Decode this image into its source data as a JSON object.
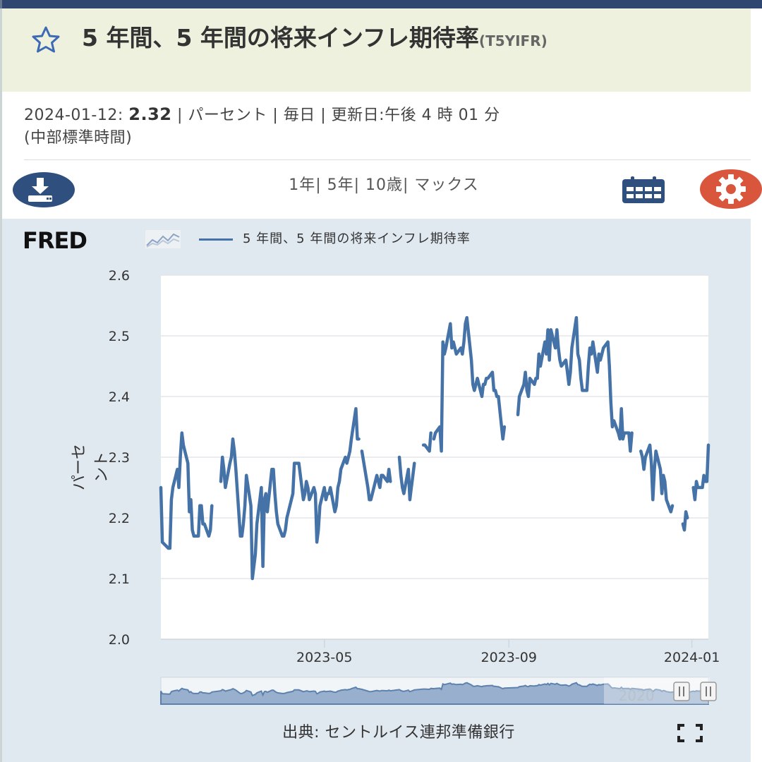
{
  "header": {
    "title": "5 年間、5 年間の将来インフレ期待率",
    "series_id": "(T5YIFR)"
  },
  "meta": {
    "date": "2024-01-12:",
    "value": "2.32",
    "rest_line1": "| パーセント | 毎日 | 更新日:午後 4 時 01 分",
    "rest_line2": "(中部標準時間)"
  },
  "toolbar": {
    "ranges": "1年| 5年| 10歳| マックス"
  },
  "chart_header": {
    "logo": "FRED",
    "legend": "5 年間、5 年間の将来インフレ期待率"
  },
  "navigator_label": "2020",
  "source": "出典: セントルイス連邦準備銀行",
  "colors": {
    "series": "#4572a7",
    "accent_red": "#d9553b",
    "accent_blue": "#2f4f7f",
    "panel": "#e1e9f0",
    "title_bg": "#eff1df"
  },
  "chart_data": {
    "type": "line",
    "ylabel": "パーセント",
    "ylim": [
      2.0,
      2.6
    ],
    "yticks": [
      "2.0",
      "2.1",
      "2.2",
      "2.3",
      "2.4",
      "2.5",
      "2.6"
    ],
    "xticks": [
      {
        "label": "2023-05",
        "date": "2023-05-01"
      },
      {
        "label": "2023-09",
        "date": "2023-09-01"
      },
      {
        "label": "2024-01",
        "date": "2024-01-01"
      }
    ],
    "xlim": [
      "2023-01-12",
      "2024-01-12"
    ],
    "grid": true,
    "series": [
      {
        "name": "5 年間、5 年間の将来インフレ期待率",
        "points": [
          [
            "2023-01-12",
            2.25
          ],
          [
            "2023-01-13",
            2.16
          ],
          [
            "2023-01-17",
            2.15
          ],
          [
            "2023-01-18",
            2.15
          ],
          [
            "2023-01-19",
            2.23
          ],
          [
            "2023-01-20",
            2.25
          ],
          [
            "2023-01-23",
            2.28
          ],
          [
            "2023-01-24",
            2.25
          ],
          [
            "2023-01-25",
            2.3
          ],
          [
            "2023-01-26",
            2.34
          ],
          [
            "2023-01-27",
            2.32
          ],
          [
            "2023-01-30",
            2.29
          ],
          [
            "2023-01-31",
            2.21
          ],
          [
            "2023-02-01",
            2.23
          ],
          [
            "2023-02-02",
            2.18
          ],
          [
            "2023-02-03",
            2.17
          ],
          [
            "2023-02-06",
            2.17
          ],
          [
            "2023-02-07",
            2.22
          ],
          [
            "2023-02-08",
            2.22
          ],
          [
            "2023-02-09",
            2.19
          ],
          [
            "2023-02-10",
            2.19
          ],
          [
            "2023-02-13",
            2.17
          ],
          [
            "2023-02-14",
            2.18
          ],
          [
            "2023-02-15",
            2.22
          ],
          null,
          [
            "2023-02-21",
            2.26
          ],
          [
            "2023-02-22",
            2.3
          ],
          [
            "2023-02-23",
            2.28
          ],
          [
            "2023-02-24",
            2.25
          ],
          [
            "2023-02-27",
            2.29
          ],
          [
            "2023-02-28",
            2.3
          ],
          [
            "2023-03-01",
            2.33
          ],
          [
            "2023-03-02",
            2.31
          ],
          [
            "2023-03-03",
            2.28
          ],
          [
            "2023-03-06",
            2.17
          ],
          [
            "2023-03-07",
            2.17
          ],
          [
            "2023-03-08",
            2.19
          ],
          [
            "2023-03-09",
            2.22
          ],
          [
            "2023-03-10",
            2.27
          ],
          [
            "2023-03-13",
            2.22
          ],
          [
            "2023-03-14",
            2.1
          ],
          [
            "2023-03-15",
            2.12
          ],
          [
            "2023-03-16",
            2.14
          ],
          [
            "2023-03-17",
            2.19
          ],
          [
            "2023-03-20",
            2.25
          ],
          [
            "2023-03-21",
            2.12
          ],
          [
            "2023-03-22",
            2.23
          ],
          [
            "2023-03-23",
            2.24
          ],
          [
            "2023-03-24",
            2.21
          ],
          [
            "2023-03-27",
            2.28
          ],
          [
            "2023-03-28",
            2.28
          ],
          [
            "2023-03-29",
            2.24
          ],
          [
            "2023-03-30",
            2.21
          ],
          [
            "2023-03-31",
            2.19
          ],
          [
            "2023-04-03",
            2.17
          ],
          [
            "2023-04-04",
            2.17
          ],
          [
            "2023-04-05",
            2.18
          ],
          [
            "2023-04-06",
            2.2
          ],
          [
            "2023-04-10",
            2.24
          ],
          [
            "2023-04-11",
            2.29
          ],
          [
            "2023-04-12",
            2.29
          ],
          [
            "2023-04-13",
            2.29
          ],
          [
            "2023-04-14",
            2.29
          ],
          [
            "2023-04-17",
            2.23
          ],
          [
            "2023-04-18",
            2.24
          ],
          [
            "2023-04-19",
            2.26
          ],
          [
            "2023-04-20",
            2.25
          ],
          [
            "2023-04-21",
            2.23
          ],
          [
            "2023-04-24",
            2.25
          ],
          [
            "2023-04-25",
            2.24
          ],
          [
            "2023-04-26",
            2.16
          ],
          [
            "2023-04-27",
            2.18
          ],
          [
            "2023-04-28",
            2.22
          ],
          [
            "2023-05-01",
            2.25
          ],
          [
            "2023-05-02",
            2.23
          ],
          [
            "2023-05-03",
            2.24
          ],
          [
            "2023-05-04",
            2.24
          ],
          [
            "2023-05-05",
            2.25
          ],
          [
            "2023-05-08",
            2.21
          ],
          [
            "2023-05-09",
            2.22
          ],
          [
            "2023-05-10",
            2.25
          ],
          [
            "2023-05-11",
            2.26
          ],
          [
            "2023-05-12",
            2.28
          ],
          [
            "2023-05-15",
            2.3
          ],
          [
            "2023-05-16",
            2.29
          ],
          [
            "2023-05-17",
            2.3
          ],
          [
            "2023-05-18",
            2.31
          ],
          [
            "2023-05-19",
            2.33
          ],
          [
            "2023-05-22",
            2.38
          ],
          [
            "2023-05-23",
            2.33
          ],
          [
            "2023-05-24",
            2.33
          ],
          null,
          [
            "2023-05-26",
            2.31
          ],
          [
            "2023-05-30",
            2.25
          ],
          [
            "2023-05-31",
            2.23
          ],
          [
            "2023-06-01",
            2.23
          ],
          [
            "2023-06-02",
            2.24
          ],
          [
            "2023-06-05",
            2.27
          ],
          [
            "2023-06-06",
            2.26
          ],
          [
            "2023-06-07",
            2.25
          ],
          [
            "2023-06-08",
            2.27
          ],
          [
            "2023-06-09",
            2.27
          ],
          [
            "2023-06-12",
            2.26
          ],
          [
            "2023-06-13",
            2.28
          ],
          [
            "2023-06-14",
            2.26
          ],
          null,
          [
            "2023-06-20",
            2.3
          ],
          [
            "2023-06-21",
            2.27
          ],
          [
            "2023-06-22",
            2.25
          ],
          [
            "2023-06-23",
            2.24
          ],
          [
            "2023-06-26",
            2.28
          ],
          [
            "2023-06-27",
            2.23
          ],
          [
            "2023-06-28",
            2.25
          ],
          [
            "2023-06-29",
            2.27
          ],
          [
            "2023-06-30",
            2.29
          ],
          null,
          [
            "2023-07-06",
            2.32
          ],
          [
            "2023-07-07",
            2.32
          ],
          [
            "2023-07-10",
            2.31
          ],
          [
            "2023-07-11",
            2.34
          ],
          null,
          [
            "2023-07-13",
            2.33
          ],
          [
            "2023-07-14",
            2.34
          ],
          [
            "2023-07-17",
            2.35
          ],
          [
            "2023-07-18",
            2.31
          ],
          [
            "2023-07-19",
            2.49
          ],
          [
            "2023-07-20",
            2.47
          ],
          [
            "2023-07-21",
            2.48
          ],
          [
            "2023-07-24",
            2.52
          ],
          [
            "2023-07-25",
            2.48
          ],
          [
            "2023-07-26",
            2.49
          ],
          [
            "2023-07-27",
            2.48
          ],
          [
            "2023-07-28",
            2.47
          ],
          [
            "2023-07-31",
            2.48
          ],
          [
            "2023-08-01",
            2.47
          ],
          [
            "2023-08-02",
            2.49
          ],
          [
            "2023-08-03",
            2.52
          ],
          [
            "2023-08-04",
            2.53
          ],
          [
            "2023-08-07",
            2.46
          ],
          [
            "2023-08-08",
            2.42
          ],
          [
            "2023-08-09",
            2.41
          ],
          [
            "2023-08-10",
            2.42
          ],
          [
            "2023-08-11",
            2.43
          ],
          [
            "2023-08-14",
            2.4
          ],
          [
            "2023-08-15",
            2.42
          ],
          [
            "2023-08-16",
            2.42
          ],
          [
            "2023-08-17",
            2.43
          ],
          [
            "2023-08-18",
            2.43
          ],
          [
            "2023-08-21",
            2.44
          ],
          [
            "2023-08-22",
            2.41
          ],
          [
            "2023-08-23",
            2.41
          ],
          [
            "2023-08-24",
            2.4
          ],
          [
            "2023-08-25",
            2.4
          ],
          [
            "2023-08-28",
            2.33
          ],
          [
            "2023-08-29",
            2.35
          ],
          null,
          [
            "2023-09-07",
            2.37
          ],
          [
            "2023-09-08",
            2.4
          ],
          [
            "2023-09-11",
            2.42
          ],
          [
            "2023-09-12",
            2.44
          ],
          [
            "2023-09-13",
            2.41
          ],
          [
            "2023-09-14",
            2.4
          ],
          [
            "2023-09-15",
            2.43
          ],
          [
            "2023-09-18",
            2.42
          ],
          [
            "2023-09-19",
            2.43
          ],
          [
            "2023-09-20",
            2.43
          ],
          [
            "2023-09-21",
            2.47
          ],
          [
            "2023-09-22",
            2.45
          ],
          [
            "2023-09-25",
            2.49
          ],
          [
            "2023-09-26",
            2.47
          ],
          [
            "2023-09-27",
            2.51
          ],
          [
            "2023-09-28",
            2.46
          ],
          [
            "2023-09-29",
            2.51
          ],
          [
            "2023-10-02",
            2.48
          ],
          [
            "2023-10-03",
            2.51
          ],
          [
            "2023-10-04",
            2.48
          ],
          [
            "2023-10-05",
            2.46
          ],
          [
            "2023-10-06",
            2.45
          ],
          [
            "2023-10-09",
            2.46
          ],
          [
            "2023-10-10",
            2.44
          ],
          [
            "2023-10-11",
            2.42
          ],
          [
            "2023-10-12",
            2.44
          ],
          [
            "2023-10-13",
            2.48
          ],
          [
            "2023-10-16",
            2.53
          ],
          [
            "2023-10-17",
            2.47
          ],
          [
            "2023-10-18",
            2.46
          ],
          [
            "2023-10-19",
            2.43
          ],
          [
            "2023-10-20",
            2.41
          ],
          [
            "2023-10-23",
            2.41
          ],
          [
            "2023-10-24",
            2.45
          ],
          [
            "2023-10-25",
            2.48
          ],
          [
            "2023-10-26",
            2.47
          ],
          [
            "2023-10-27",
            2.49
          ],
          [
            "2023-10-30",
            2.44
          ],
          [
            "2023-10-31",
            2.47
          ],
          [
            "2023-11-01",
            2.46
          ],
          [
            "2023-11-02",
            2.47
          ],
          [
            "2023-11-03",
            2.48
          ],
          [
            "2023-11-06",
            2.49
          ],
          [
            "2023-11-07",
            2.45
          ],
          [
            "2023-11-08",
            2.39
          ],
          [
            "2023-11-09",
            2.35
          ],
          [
            "2023-11-10",
            2.36
          ],
          [
            "2023-11-13",
            2.34
          ],
          [
            "2023-11-14",
            2.33
          ],
          [
            "2023-11-15",
            2.38
          ],
          [
            "2023-11-16",
            2.33
          ],
          [
            "2023-11-17",
            2.34
          ],
          [
            "2023-11-20",
            2.34
          ],
          [
            "2023-11-21",
            2.31
          ],
          [
            "2023-11-22",
            2.34
          ],
          null,
          [
            "2023-11-28",
            2.31
          ],
          [
            "2023-11-29",
            2.3
          ],
          [
            "2023-11-30",
            2.28
          ],
          [
            "2023-12-01",
            2.3
          ],
          [
            "2023-12-04",
            2.32
          ],
          [
            "2023-12-05",
            2.29
          ],
          [
            "2023-12-06",
            2.23
          ],
          [
            "2023-12-07",
            2.28
          ],
          [
            "2023-12-08",
            2.31
          ],
          [
            "2023-12-11",
            2.28
          ],
          [
            "2023-12-12",
            2.24
          ],
          [
            "2023-12-13",
            2.27
          ],
          [
            "2023-12-14",
            2.26
          ],
          [
            "2023-12-15",
            2.23
          ],
          [
            "2023-12-18",
            2.21
          ],
          [
            "2023-12-19",
            2.22
          ],
          null,
          [
            "2023-12-26",
            2.19
          ],
          [
            "2023-12-27",
            2.18
          ],
          [
            "2023-12-28",
            2.21
          ],
          [
            "2023-12-29",
            2.2
          ],
          null,
          [
            "2024-01-02",
            2.25
          ],
          [
            "2024-01-03",
            2.23
          ],
          [
            "2024-01-04",
            2.26
          ],
          [
            "2024-01-05",
            2.25
          ],
          [
            "2024-01-08",
            2.25
          ],
          [
            "2024-01-09",
            2.27
          ],
          [
            "2024-01-10",
            2.26
          ],
          [
            "2024-01-11",
            2.26
          ],
          [
            "2024-01-12",
            2.32
          ]
        ]
      }
    ]
  }
}
